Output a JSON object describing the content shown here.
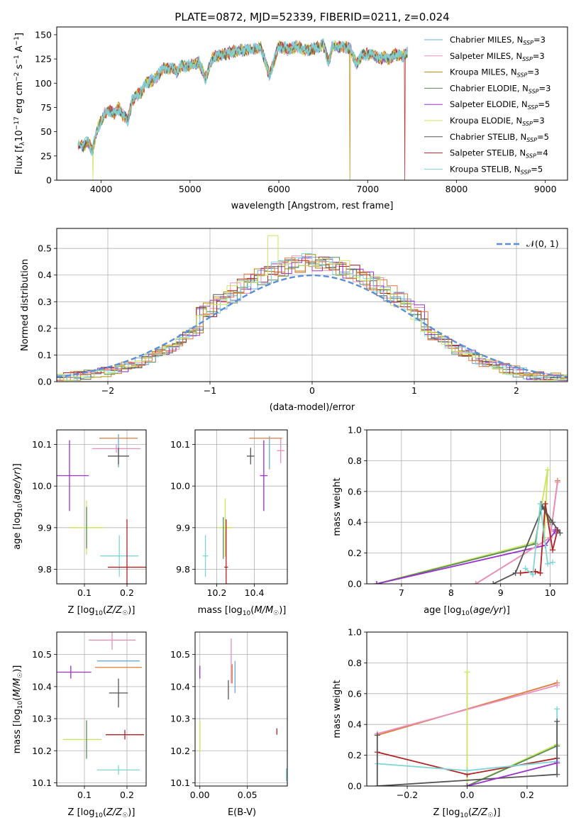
{
  "colors": {
    "chabrier_miles": "#6fa8dc",
    "salpeter_miles": "#e88fbf",
    "kroupa_miles": "#b8860b",
    "chabrier_elodie": "#5a8a5a",
    "salpeter_elodie": "#9932cc",
    "kroupa_elodie": "#c8e65a",
    "chabrier_stelib": "#555555",
    "salpeter_stelib": "#b22222",
    "kroupa_stelib": "#7fd6d6",
    "orange": "#e07b39",
    "normal_curve": "#5b8fd6",
    "grid": "#b0b0b0"
  },
  "chart_data": [
    {
      "type": "line",
      "title": "PLATE=0872, MJD=52339, FIBERID=0211, z=0.024",
      "xlabel": "wavelength [Angstrom, rest frame]",
      "ylabel": "Flux [f_λ 10^-17 erg cm^-2 s^-1 A^-1]",
      "xlim": [
        3500,
        9250
      ],
      "ylim": [
        0,
        158
      ],
      "xticks": [
        4000,
        5000,
        6000,
        7000,
        8000,
        9000
      ],
      "yticks": [
        0,
        25,
        50,
        75,
        100,
        125,
        150
      ],
      "grid": false,
      "legend_position": "right",
      "legend": [
        {
          "name": "Chabrier MILES",
          "n": "3"
        },
        {
          "name": "Salpeter MILES",
          "n": "3"
        },
        {
          "name": "Kroupa MILES",
          "n": "3"
        },
        {
          "name": "Chabrier ELODIE",
          "n": "3"
        },
        {
          "name": "Salpeter ELODIE",
          "n": "5"
        },
        {
          "name": "Kroupa ELODIE",
          "n": "3"
        },
        {
          "name": "Chabrier STELIB",
          "n": "5"
        },
        {
          "name": "Salpeter STELIB",
          "n": "4"
        },
        {
          "name": "Kroupa STELIB",
          "n": "5"
        }
      ],
      "spectrum": {
        "x": [
          3740,
          3800,
          3850,
          3900,
          3950,
          4000,
          4050,
          4100,
          4150,
          4200,
          4250,
          4300,
          4350,
          4400,
          4450,
          4500,
          4600,
          4700,
          4800,
          4861,
          4900,
          5000,
          5100,
          5175,
          5250,
          5300,
          5400,
          5500,
          5600,
          5700,
          5800,
          5893,
          6000,
          6100,
          6200,
          6300,
          6400,
          6500,
          6563,
          6600,
          6700,
          6800,
          6870,
          6950,
          7050,
          7150,
          7200,
          7250,
          7300,
          7400,
          7450
        ],
        "y": [
          38,
          35,
          40,
          30,
          50,
          62,
          70,
          72,
          68,
          75,
          66,
          62,
          82,
          88,
          90,
          100,
          104,
          115,
          115,
          112,
          118,
          118,
          122,
          105,
          125,
          128,
          130,
          133,
          134,
          135,
          137,
          108,
          138,
          135,
          138,
          134,
          136,
          140,
          122,
          138,
          138,
          136,
          120,
          130,
          130,
          125,
          128,
          124,
          130,
          128,
          132
        ]
      },
      "truncations": [
        {
          "series": "Kroupa ELODIE",
          "x": 3910
        },
        {
          "series": "Kroupa MILES",
          "x": 6800
        },
        {
          "series": "Salpeter STELIB",
          "x": 7420
        }
      ]
    },
    {
      "type": "histogram",
      "xlabel": "(data-model)/error",
      "ylabel": "Normed distribution",
      "xlim": [
        -2.5,
        2.5
      ],
      "ylim": [
        0,
        0.575
      ],
      "xticks": [
        -2,
        -1,
        0,
        1,
        2
      ],
      "yticks": [
        0.0,
        0.1,
        0.2,
        0.3,
        0.4,
        0.5
      ],
      "grid": true,
      "legend": [
        {
          "name": "𝒩(0, 1)"
        }
      ],
      "normal_curve": {
        "mean": 0,
        "sd": 1
      }
    },
    {
      "type": "scatter",
      "xlabel": "Z [log10(Z/Z_☉)]",
      "ylabel": "age  [log10(age/yr)]",
      "xlim": [
        0.035,
        0.245
      ],
      "ylim": [
        9.765,
        10.135
      ],
      "xticks": [
        0.1,
        0.2
      ],
      "yticks": [
        9.8,
        9.9,
        10.0,
        10.1
      ],
      "grid": true,
      "points": [
        {
          "series": "orange",
          "x": 0.18,
          "y": 10.115,
          "xerr": 0.045,
          "yerr": 0.0
        },
        {
          "series": "Salpeter MILES",
          "x": 0.175,
          "y": 10.09,
          "xerr": 0.057,
          "yerr": 0.01
        },
        {
          "series": "Chabrier MILES",
          "x": 0.18,
          "y": 10.085,
          "xerr": 0.0,
          "yerr": 0.04
        },
        {
          "series": "Chabrier STELIB",
          "x": 0.18,
          "y": 10.072,
          "xerr": 0.025,
          "yerr": 0.02
        },
        {
          "series": "Salpeter ELODIE",
          "x": 0.065,
          "y": 10.025,
          "xerr": 0.045,
          "yerr": 0.085
        },
        {
          "series": "Kroupa ELODIE",
          "x": 0.105,
          "y": 9.9,
          "xerr": 0.04,
          "yerr": 0.065
        },
        {
          "series": "Chabrier ELODIE",
          "x": 0.105,
          "y": 9.9,
          "xerr": 0.0,
          "yerr": 0.05
        },
        {
          "series": "Kroupa STELIB",
          "x": 0.182,
          "y": 9.832,
          "xerr": 0.045,
          "yerr": 0.05
        },
        {
          "series": "Salpeter STELIB",
          "x": 0.2,
          "y": 9.805,
          "xerr": 0.045,
          "yerr": 0.115
        }
      ]
    },
    {
      "type": "scatter",
      "xlabel": "mass [log10(M/M_☉)]",
      "ylabel": "",
      "xlim": [
        10.085,
        10.575
      ],
      "ylim": [
        9.765,
        10.135
      ],
      "xticks": [
        10.2,
        10.4
      ],
      "yticks": [
        9.8,
        9.9,
        10.0,
        10.1
      ],
      "grid": true,
      "points": [
        {
          "series": "orange",
          "x": 10.46,
          "y": 10.115,
          "xerr": 0.0875,
          "yerr": 0.0
        },
        {
          "series": "Chabrier MILES",
          "x": 10.48,
          "y": 10.08,
          "xerr": 0.0,
          "yerr": 0.04
        },
        {
          "series": "Salpeter MILES",
          "x": 10.54,
          "y": 10.085,
          "xerr": 0.02,
          "yerr": 0.03
        },
        {
          "series": "Chabrier STELIB",
          "x": 10.38,
          "y": 10.072,
          "xerr": 0.02,
          "yerr": 0.02
        },
        {
          "series": "Salpeter ELODIE",
          "x": 10.45,
          "y": 10.025,
          "xerr": 0.02,
          "yerr": 0.085
        },
        {
          "series": "Kroupa ELODIE",
          "x": 10.245,
          "y": 9.9,
          "xerr": 0.04,
          "yerr": 0.07
        },
        {
          "series": "Chabrier ELODIE",
          "x": 10.235,
          "y": 9.875,
          "xerr": 0.0,
          "yerr": 0.05
        },
        {
          "series": "Kroupa STELIB",
          "x": 10.14,
          "y": 9.832,
          "xerr": 0.015,
          "yerr": 0.05
        },
        {
          "series": "Salpeter STELIB",
          "x": 10.25,
          "y": 9.805,
          "xerr": 0.01,
          "yerr": 0.115
        }
      ]
    },
    {
      "type": "line",
      "xlabel": "age  [log10(age/yr)]",
      "ylabel": "mass weight",
      "xlim": [
        6.3,
        10.35
      ],
      "ylim": [
        0,
        1
      ],
      "xticks": [
        7,
        8,
        9,
        10
      ],
      "yticks": [
        0.0,
        0.2,
        0.4,
        0.6,
        0.8,
        1.0
      ],
      "grid": true,
      "series": [
        {
          "name": "Kroupa ELODIE",
          "x": [
            6.5,
            9.7,
            9.95,
            9.88
          ],
          "y": [
            0.0,
            0.27,
            0.74,
            0.3
          ]
        },
        {
          "name": "Chabrier ELODIE",
          "x": [
            6.5,
            9.7,
            9.82,
            10.0
          ],
          "y": [
            0.0,
            0.26,
            0.52,
            0.4
          ]
        },
        {
          "name": "Salpeter ELODIE",
          "x": [
            6.5,
            9.9,
            10.1,
            10.1
          ],
          "y": [
            0.0,
            0.25,
            0.34,
            0.35
          ]
        },
        {
          "name": "orange",
          "x": [
            8.5,
            10.0,
            10.15
          ],
          "y": [
            0.0,
            0.3,
            0.67
          ]
        },
        {
          "name": "Salpeter MILES",
          "x": [
            8.5,
            10.0,
            10.15
          ],
          "y": [
            0.0,
            0.3,
            0.66
          ]
        },
        {
          "name": "Salpeter STELIB",
          "x": [
            9.4,
            9.7,
            9.8,
            9.9,
            10.05,
            10.15
          ],
          "y": [
            0.07,
            0.08,
            0.07,
            0.52,
            0.22,
            0.35
          ]
        },
        {
          "name": "Chabrier STELIB",
          "x": [
            8.85,
            9.3,
            9.85,
            10.05,
            10.2
          ],
          "y": [
            0.0,
            0.07,
            0.5,
            0.4,
            0.33
          ]
        },
        {
          "name": "Kroupa STELIB",
          "x": [
            9.5,
            9.65,
            9.8,
            9.95,
            10.05
          ],
          "y": [
            0.1,
            0.06,
            0.52,
            0.13,
            0.14
          ]
        }
      ]
    },
    {
      "type": "scatter",
      "xlabel": "Z [log10(Z/Z_☉)]",
      "ylabel": "mass [log10(M/M_☉)]",
      "xlim": [
        0.035,
        0.245
      ],
      "ylim": [
        10.09,
        10.57
      ],
      "xticks": [
        0.1,
        0.2
      ],
      "yticks": [
        10.1,
        10.2,
        10.3,
        10.4,
        10.5
      ],
      "grid": true,
      "points": [
        {
          "series": "Salpeter MILES",
          "x": 0.165,
          "y": 10.545,
          "xerr": 0.055,
          "yerr": 0.03
        },
        {
          "series": "Chabrier MILES",
          "x": 0.18,
          "y": 10.48,
          "xerr": 0.05,
          "yerr": 0.0
        },
        {
          "series": "orange",
          "x": 0.18,
          "y": 10.46,
          "xerr": 0.055,
          "yerr": 0.0
        },
        {
          "series": "Salpeter ELODIE",
          "x": 0.068,
          "y": 10.445,
          "xerr": 0.048,
          "yerr": 0.02
        },
        {
          "series": "Chabrier STELIB",
          "x": 0.18,
          "y": 10.38,
          "xerr": 0.022,
          "yerr": 0.045
        },
        {
          "series": "Salpeter STELIB",
          "x": 0.195,
          "y": 10.25,
          "xerr": 0.045,
          "yerr": 0.015
        },
        {
          "series": "Kroupa ELODIE",
          "x": 0.095,
          "y": 10.235,
          "xerr": 0.045,
          "yerr": 0.0
        },
        {
          "series": "Chabrier ELODIE",
          "x": 0.105,
          "y": 10.235,
          "xerr": 0.0,
          "yerr": 0.06
        },
        {
          "series": "Kroupa STELIB",
          "x": 0.18,
          "y": 10.14,
          "xerr": 0.05,
          "yerr": 0.015
        }
      ]
    },
    {
      "type": "scatter",
      "xlabel": "E(B-V)",
      "ylabel": "",
      "xlim": [
        -0.005,
        0.092
      ],
      "ylim": [
        10.09,
        10.57
      ],
      "xticks": [
        0.0,
        0.05
      ],
      "xticklabels": [
        "0.00",
        "0.05"
      ],
      "yticks": [
        10.1,
        10.2,
        10.3,
        10.4,
        10.5
      ],
      "grid": true,
      "points": [
        {
          "series": "Salpeter ELODIE",
          "x": 0.0,
          "y": 10.445,
          "yerr": 0.02
        },
        {
          "series": "Kroupa ELODIE",
          "x": 0.0,
          "y": 10.245,
          "yerr": 0.05
        },
        {
          "series": "Chabrier STELIB",
          "x": 0.03,
          "y": 10.39,
          "yerr": 0.03
        },
        {
          "series": "Salpeter MILES",
          "x": 0.033,
          "y": 10.48,
          "yerr": 0.07
        },
        {
          "series": "orange",
          "x": 0.034,
          "y": 10.44,
          "yerr": 0.03
        },
        {
          "series": "Chabrier MILES",
          "x": 0.037,
          "y": 10.43,
          "yerr": 0.05
        },
        {
          "series": "Salpeter STELIB",
          "x": 0.081,
          "y": 10.26,
          "yerr": 0.01
        },
        {
          "series": "Kroupa STELIB",
          "x": 0.091,
          "y": 10.125,
          "yerr": 0.02
        }
      ]
    },
    {
      "type": "line",
      "xlabel": "Z [log10(Z/Z_☉)]",
      "ylabel": "mass weight",
      "xlim": [
        -0.335,
        0.335
      ],
      "ylim": [
        0,
        1
      ],
      "xticks": [
        -0.2,
        0.0,
        0.2
      ],
      "yticks": [
        0.0,
        0.2,
        0.4,
        0.6,
        0.8,
        1.0
      ],
      "grid": true,
      "series": [
        {
          "name": "orange",
          "x": [
            -0.3,
            0.3
          ],
          "y": [
            0.33,
            0.67
          ]
        },
        {
          "name": "Salpeter MILES",
          "x": [
            -0.3,
            0.3
          ],
          "y": [
            0.34,
            0.655
          ]
        },
        {
          "name": "Kroupa ELODIE",
          "x": [
            0.0,
            0.0,
            0.3
          ],
          "y": [
            0.74,
            0.0,
            0.27
          ]
        },
        {
          "name": "Chabrier ELODIE",
          "x": [
            0.0,
            0.3
          ],
          "y": [
            0.0,
            0.26
          ]
        },
        {
          "name": "Salpeter STELIB",
          "x": [
            -0.3,
            0.0,
            0.3
          ],
          "y": [
            0.22,
            0.075,
            0.18
          ]
        },
        {
          "name": "Kroupa STELIB",
          "x": [
            -0.3,
            0.0,
            0.3,
            0.3
          ],
          "y": [
            0.145,
            0.1,
            0.16,
            0.5
          ]
        },
        {
          "name": "Chabrier STELIB",
          "x": [
            -0.3,
            -0.3,
            0.3,
            0.3
          ],
          "y": [
            0.33,
            0.0,
            0.075,
            0.42
          ]
        },
        {
          "name": "Salpeter ELODIE",
          "x": [
            0.0,
            0.3
          ],
          "y": [
            0.0,
            0.15
          ]
        }
      ]
    }
  ]
}
